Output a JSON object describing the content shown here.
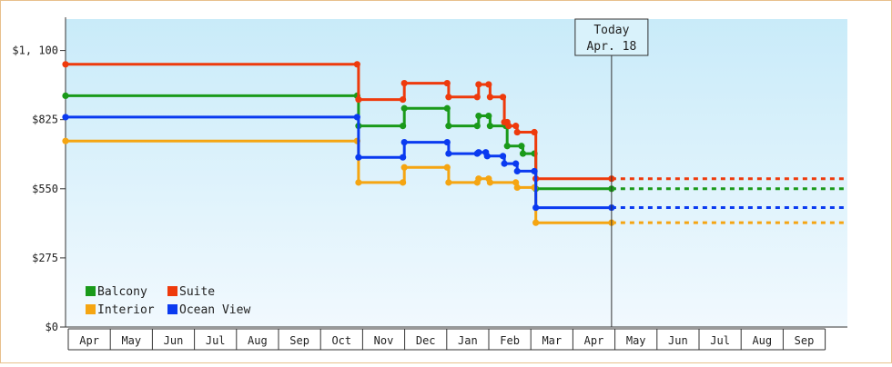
{
  "chart_data": {
    "type": "line",
    "step": true,
    "title": "",
    "xlabel": "",
    "ylabel": "",
    "ylim": [
      0,
      1225
    ],
    "y_ticks": [
      0,
      275,
      550,
      825,
      1100
    ],
    "y_tick_labels": [
      "$0",
      "$275",
      "$550",
      "$825",
      "$1, 100"
    ],
    "x_tick_labels": [
      "Apr",
      "May",
      "Jun",
      "Jul",
      "Aug",
      "Sep",
      "Oct",
      "Nov",
      "Dec",
      "Jan",
      "Feb",
      "Mar",
      "Apr",
      "May",
      "Jun",
      "Jul",
      "Aug",
      "Sep"
    ],
    "x_range": [
      "2020-04-01",
      "2021-09-30"
    ],
    "today": {
      "date": "2021-04-18",
      "label_line1": "Today",
      "label_line2": "Apr. 18"
    },
    "grid": false,
    "background": "light-blue-gradient",
    "legend_position": "bottom-left",
    "forecast_end": "2021-09-30",
    "series": [
      {
        "name": "Balcony",
        "color": "#1a9a1a",
        "points": [
          [
            "2020-04-01",
            920
          ],
          [
            "2020-10-22",
            920
          ],
          [
            "2020-10-23",
            800
          ],
          [
            "2020-11-23",
            800
          ],
          [
            "2020-11-24",
            870
          ],
          [
            "2020-12-24",
            870
          ],
          [
            "2020-12-25",
            800
          ],
          [
            "2021-01-14",
            800
          ],
          [
            "2021-01-15",
            840
          ],
          [
            "2021-01-22",
            840
          ],
          [
            "2021-01-23",
            800
          ],
          [
            "2021-02-03",
            800
          ],
          [
            "2021-02-04",
            720
          ],
          [
            "2021-02-14",
            720
          ],
          [
            "2021-02-15",
            690
          ],
          [
            "2021-02-23",
            690
          ],
          [
            "2021-02-24",
            550
          ],
          [
            "2021-04-18",
            550
          ]
        ],
        "forecast": 550
      },
      {
        "name": "Suite",
        "color": "#ee3a0c",
        "points": [
          [
            "2020-04-01",
            1045
          ],
          [
            "2020-10-22",
            1045
          ],
          [
            "2020-10-23",
            905
          ],
          [
            "2020-11-23",
            905
          ],
          [
            "2020-11-24",
            970
          ],
          [
            "2020-12-24",
            970
          ],
          [
            "2020-12-25",
            915
          ],
          [
            "2021-01-14",
            915
          ],
          [
            "2021-01-15",
            965
          ],
          [
            "2021-01-22",
            965
          ],
          [
            "2021-01-23",
            915
          ],
          [
            "2021-02-01",
            915
          ],
          [
            "2021-02-02",
            815
          ],
          [
            "2021-02-04",
            815
          ],
          [
            "2021-02-05",
            800
          ],
          [
            "2021-02-10",
            800
          ],
          [
            "2021-02-11",
            775
          ],
          [
            "2021-02-23",
            775
          ],
          [
            "2021-02-24",
            590
          ],
          [
            "2021-04-18",
            590
          ]
        ],
        "forecast": 590
      },
      {
        "name": "Interior",
        "color": "#f5a512",
        "points": [
          [
            "2020-04-01",
            740
          ],
          [
            "2020-10-22",
            740
          ],
          [
            "2020-10-23",
            575
          ],
          [
            "2020-11-23",
            575
          ],
          [
            "2020-11-24",
            635
          ],
          [
            "2020-12-24",
            635
          ],
          [
            "2020-12-25",
            575
          ],
          [
            "2021-01-14",
            575
          ],
          [
            "2021-01-15",
            590
          ],
          [
            "2021-01-22",
            590
          ],
          [
            "2021-01-23",
            575
          ],
          [
            "2021-02-10",
            575
          ],
          [
            "2021-02-11",
            555
          ],
          [
            "2021-02-23",
            555
          ],
          [
            "2021-02-24",
            415
          ],
          [
            "2021-04-18",
            415
          ]
        ],
        "forecast": 415
      },
      {
        "name": "Ocean View",
        "color": "#0a3af0",
        "points": [
          [
            "2020-04-01",
            835
          ],
          [
            "2020-10-22",
            835
          ],
          [
            "2020-10-23",
            675
          ],
          [
            "2020-11-23",
            675
          ],
          [
            "2020-11-24",
            735
          ],
          [
            "2020-12-24",
            735
          ],
          [
            "2020-12-25",
            690
          ],
          [
            "2021-01-14",
            690
          ],
          [
            "2021-01-15",
            695
          ],
          [
            "2021-01-20",
            695
          ],
          [
            "2021-01-21",
            680
          ],
          [
            "2021-02-01",
            680
          ],
          [
            "2021-02-02",
            650
          ],
          [
            "2021-02-10",
            650
          ],
          [
            "2021-02-11",
            620
          ],
          [
            "2021-02-23",
            620
          ],
          [
            "2021-02-24",
            475
          ],
          [
            "2021-04-18",
            475
          ]
        ],
        "forecast": 475
      }
    ]
  }
}
